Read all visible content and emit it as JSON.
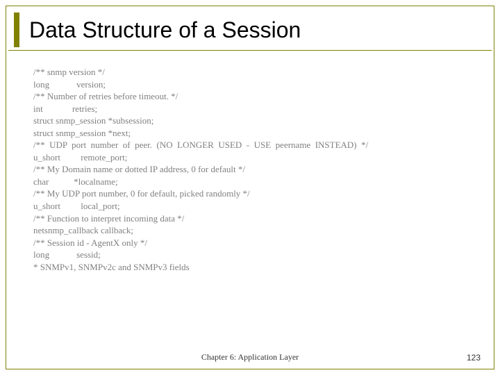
{
  "slide": {
    "title": "Data Structure of a Session",
    "accent_color": "#808000",
    "code_text_color": "#808080",
    "font_family_code": "Times New Roman",
    "code_fontsize": 13,
    "title_fontsize": 32,
    "lines": [
      "/** snmp version */",
      "long            version;",
      "/** Number of retries before timeout. */",
      "int             retries;",
      "struct snmp_session *subsession;",
      "struct snmp_session *next;",
      "/**  UDP  port  number  of  peer.  (NO  LONGER  USED  -  USE  peername  INSTEAD)  */",
      "u_short         remote_port;",
      "/** My Domain name or dotted IP address, 0 for default */",
      "char           *localname;",
      "/** My UDP port number, 0 for default, picked randomly */",
      "u_short         local_port;",
      "/** Function to interpret incoming data */",
      "netsnmp_callback callback;",
      "/** Session id - AgentX only */",
      "long            sessid;",
      "* SNMPv1, SNMPv2c and SNMPv3 fields"
    ],
    "footer": "Chapter 6: Application Layer",
    "page_number": "123"
  }
}
